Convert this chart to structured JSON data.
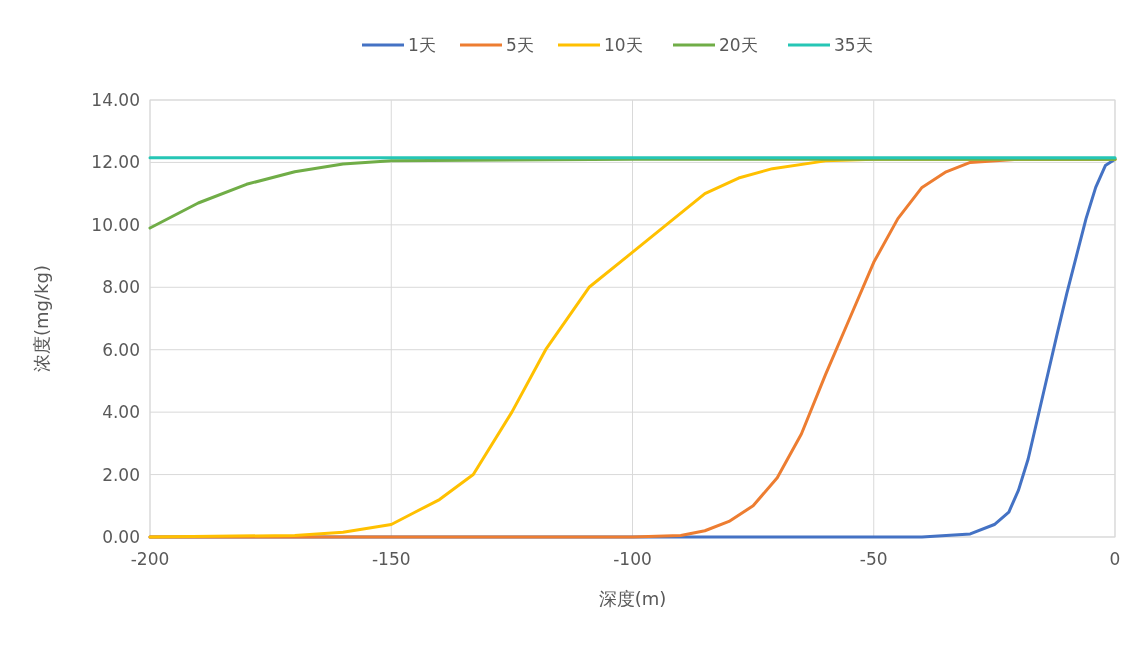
{
  "chart_data": {
    "type": "line",
    "xlabel": "深度(m)",
    "ylabel": "浓度(mg/kg)",
    "xlim": [
      -200,
      0
    ],
    "xticks": [
      -200,
      -150,
      -100,
      -50,
      0
    ],
    "ylim": [
      0,
      14
    ],
    "yticks": [
      {
        "value": 0,
        "label": "0.00"
      },
      {
        "value": 2,
        "label": "2.00"
      },
      {
        "value": 4,
        "label": "4.00"
      },
      {
        "value": 6,
        "label": "6.00"
      },
      {
        "value": 8,
        "label": "8.00"
      },
      {
        "value": 10,
        "label": "10.00"
      },
      {
        "value": 12,
        "label": "12.00"
      },
      {
        "value": 14,
        "label": "14.00"
      }
    ],
    "grid": true,
    "legend": "top",
    "marker": "none",
    "line_style": "solid",
    "series": [
      {
        "name": "1天",
        "color": "#4472c4",
        "x": [
          -200,
          -40,
          -30,
          -25,
          -22,
          -20,
          -18,
          -15,
          -12,
          -10,
          -8,
          -6,
          -4,
          -2,
          0
        ],
        "values": [
          0,
          0,
          0.1,
          0.4,
          0.8,
          1.5,
          2.5,
          4.5,
          6.5,
          7.8,
          9,
          10.2,
          11.2,
          11.9,
          12.1
        ]
      },
      {
        "name": "5天",
        "color": "#ed7d31",
        "x": [
          -200,
          -100,
          -90,
          -85,
          -80,
          -75,
          -70,
          -65,
          -60,
          -55,
          -50,
          -45,
          -40,
          -35,
          -30,
          -20,
          0
        ],
        "values": [
          0,
          0,
          0.05,
          0.2,
          0.5,
          1,
          1.9,
          3.3,
          5.2,
          7,
          8.8,
          10.2,
          11.2,
          11.7,
          12,
          12.1,
          12.1
        ]
      },
      {
        "name": "10天",
        "color": "#ffc000",
        "x": [
          -200,
          -170,
          -160,
          -150,
          -145,
          -140,
          -133,
          -125,
          -118,
          -109,
          -101,
          -93,
          -85,
          -78,
          -71,
          -60,
          -50,
          0
        ],
        "values": [
          0,
          0.05,
          0.15,
          0.4,
          0.8,
          1.2,
          2,
          4,
          6,
          8,
          9,
          10,
          11,
          11.5,
          11.8,
          12.05,
          12.1,
          12.1
        ]
      },
      {
        "name": "20天",
        "color": "#70ad47",
        "x": [
          -200,
          -195,
          -190,
          -180,
          -170,
          -160,
          -150,
          -100,
          0
        ],
        "values": [
          9.9,
          10.3,
          10.7,
          11.3,
          11.7,
          11.95,
          12.05,
          12.1,
          12.1
        ]
      },
      {
        "name": "35天",
        "color": "#26c6b5",
        "x": [
          -200,
          0
        ],
        "values": [
          12.15,
          12.15
        ]
      }
    ]
  }
}
